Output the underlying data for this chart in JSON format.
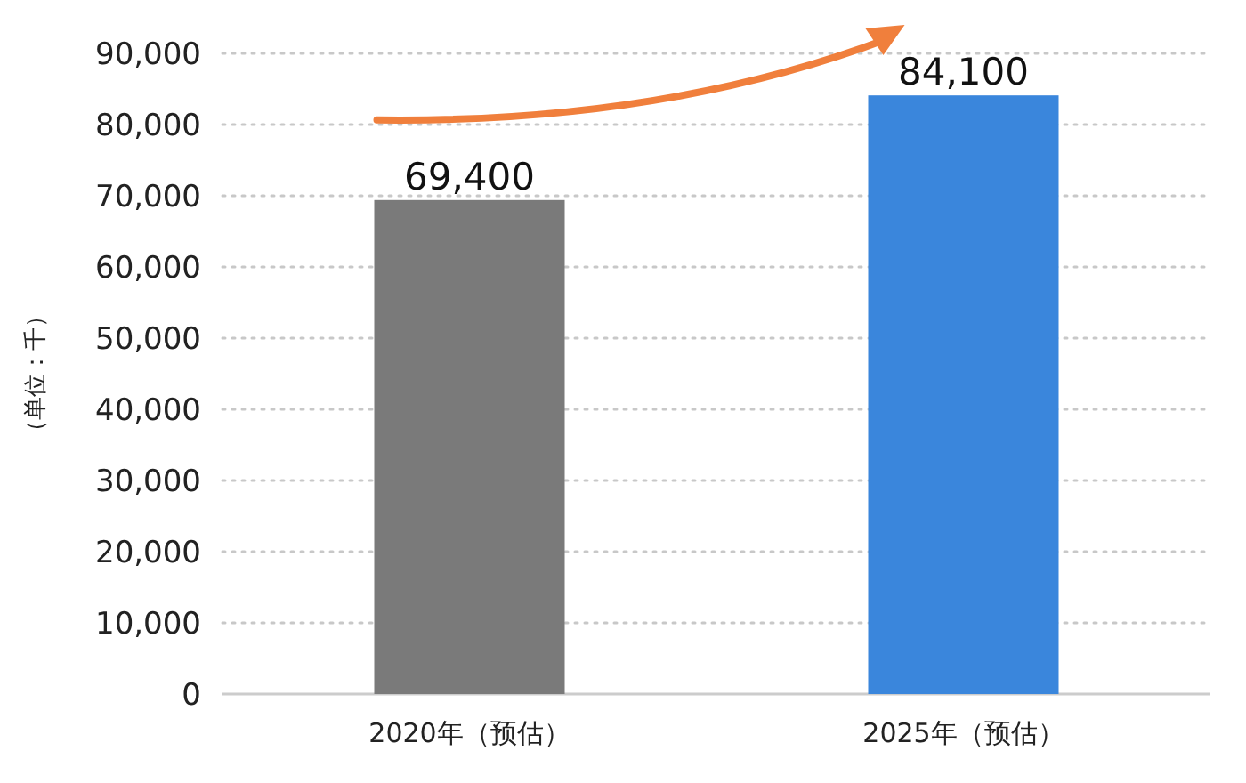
{
  "chart_data": {
    "type": "bar",
    "ylabel": "（单位：千）",
    "categories": [
      "2020年（预估）",
      "2025年（预估）"
    ],
    "values": [
      69400,
      84100
    ],
    "colors": [
      "#7a7a7a",
      "#3a86dc"
    ],
    "ylim": [
      0,
      90000
    ],
    "yticks": [
      {
        "value": 0,
        "label": "0"
      },
      {
        "value": 10000,
        "label": "10,000"
      },
      {
        "value": 20000,
        "label": "20,000"
      },
      {
        "value": 30000,
        "label": "30,000"
      },
      {
        "value": 40000,
        "label": "40,000"
      },
      {
        "value": 50000,
        "label": "50,000"
      },
      {
        "value": 60000,
        "label": "60,000"
      },
      {
        "value": 70000,
        "label": "70,000"
      },
      {
        "value": 80000,
        "label": "80,000"
      },
      {
        "value": 90000,
        "label": "90,000"
      }
    ],
    "grid": "y",
    "value_labels": [
      "69,400",
      "84,100"
    ]
  }
}
